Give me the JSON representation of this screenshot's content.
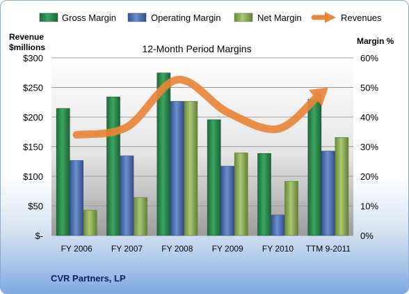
{
  "chart_data": {
    "type": "bar",
    "title": "12-Month Period Margins",
    "company": "CVR Partners, LP",
    "categories": [
      "FY 2006",
      "FY 2007",
      "FY 2008",
      "FY 2009",
      "FY 2010",
      "TTM 9-2011"
    ],
    "left_axis_label_1": "Revenue",
    "left_axis_label_2": "$millions",
    "right_axis_label": "Margin %",
    "left_ticks": [
      "$-",
      "$50",
      "$100",
      "$150",
      "$200",
      "$250",
      "$300"
    ],
    "right_ticks": [
      "0%",
      "10%",
      "20%",
      "30%",
      "40%",
      "50%",
      "60%"
    ],
    "ylim_left": [
      0,
      300
    ],
    "ylim_right": [
      0,
      60
    ],
    "series": [
      {
        "name": "Gross Margin",
        "axis": "right",
        "color": "#2e8b4f",
        "values": [
          42.9,
          46.8,
          54.9,
          39.1,
          27.7,
          46.0
        ]
      },
      {
        "name": "Operating Margin",
        "axis": "right",
        "color": "#4f74b8",
        "values": [
          25.3,
          26.9,
          45.3,
          23.4,
          6.9,
          28.5
        ]
      },
      {
        "name": "Net Margin",
        "axis": "right",
        "color": "#8fb359",
        "values": [
          8.5,
          12.8,
          45.3,
          27.9,
          18.3,
          33.1
        ]
      }
    ],
    "line_series": {
      "name": "Revenues",
      "axis": "left",
      "color": "#e8863a",
      "values": [
        170,
        183,
        263,
        208,
        180,
        250
      ]
    },
    "grid": true,
    "legend": "top"
  }
}
